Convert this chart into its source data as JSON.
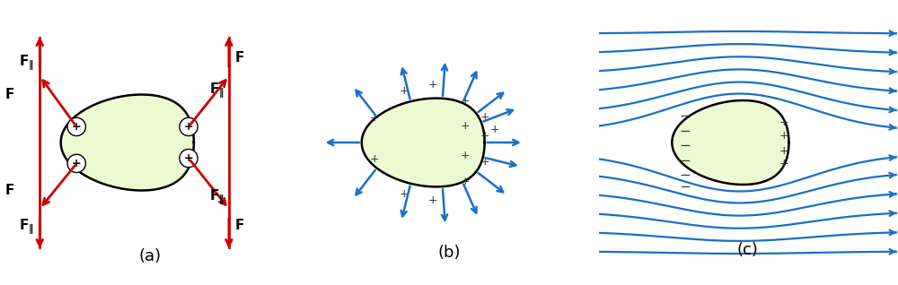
{
  "bg_color": "#ffffff",
  "conductor_outline": "#000000",
  "arrow_color_a": "#cc0000",
  "arrow_color_bc": "#1a6fc4",
  "charge_color": "#333333",
  "panel_labels": [
    "(a)",
    "(b)",
    "(c)"
  ],
  "panel_label_fontsize": 13,
  "force_label_fontsize": 11,
  "green_inner": [
    0.35,
    0.75,
    0.1
  ],
  "green_outer": [
    0.92,
    0.98,
    0.82
  ]
}
